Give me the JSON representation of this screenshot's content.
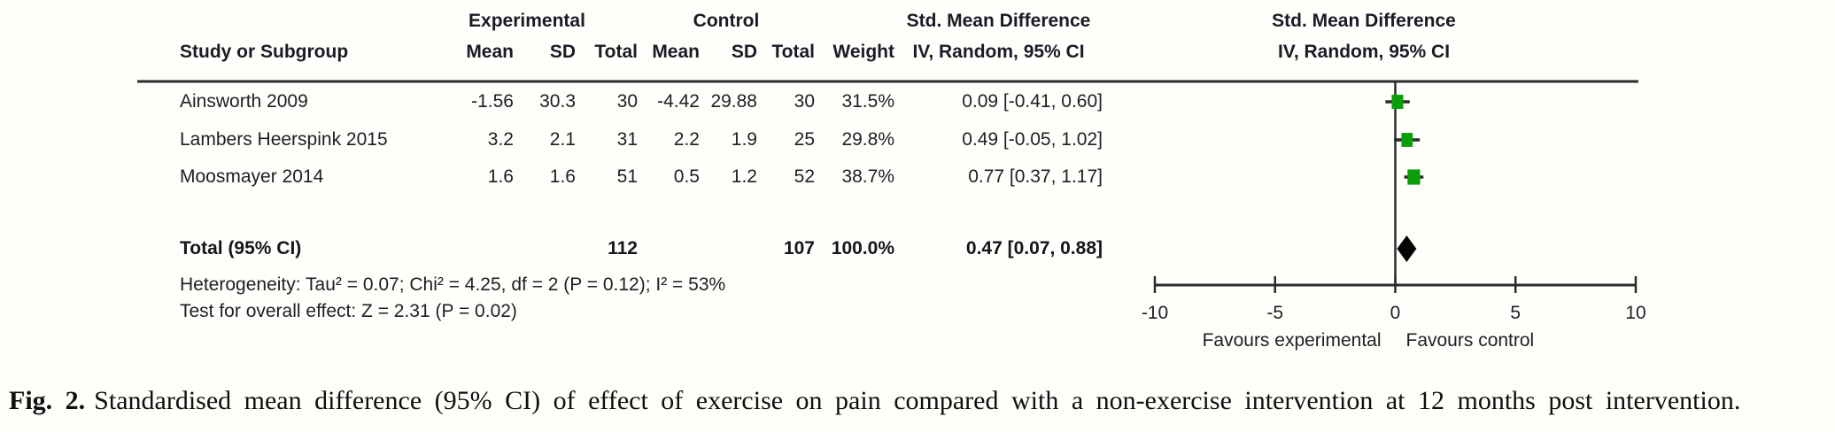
{
  "table": {
    "group_headers": {
      "experimental": "Experimental",
      "control": "Control",
      "smd": "Std. Mean Difference"
    },
    "col_headers": {
      "study": "Study or Subgroup",
      "mean_e": "Mean",
      "sd_e": "SD",
      "total_e": "Total",
      "mean_c": "Mean",
      "sd_c": "SD",
      "total_c": "Total",
      "weight": "Weight",
      "ci": "IV, Random, 95% CI"
    },
    "rows": [
      {
        "study": "Ainsworth 2009",
        "mean_e": "-1.56",
        "sd_e": "30.3",
        "total_e": "30",
        "mean_c": "-4.42",
        "sd_c": "29.88",
        "total_c": "30",
        "weight": "31.5%",
        "ci": "0.09 [-0.41, 0.60]"
      },
      {
        "study": "Lambers Heerspink 2015",
        "mean_e": "3.2",
        "sd_e": "2.1",
        "total_e": "31",
        "mean_c": "2.2",
        "sd_c": "1.9",
        "total_c": "25",
        "weight": "29.8%",
        "ci": "0.49 [-0.05, 1.02]"
      },
      {
        "study": "Moosmayer 2014",
        "mean_e": "1.6",
        "sd_e": "1.6",
        "total_e": "51",
        "mean_c": "0.5",
        "sd_c": "1.2",
        "total_c": "52",
        "weight": "38.7%",
        "ci": "0.77 [0.37, 1.17]"
      }
    ],
    "total_row": {
      "label": "Total (95% CI)",
      "total_e": "112",
      "total_c": "107",
      "weight": "100.0%",
      "ci": "0.47 [0.07, 0.88]"
    },
    "heterogeneity": "Heterogeneity: Tau² = 0.07; Chi² = 4.25, df = 2 (P = 0.12); I² = 53%",
    "overall_effect": "Test for overall effect: Z = 2.31 (P = 0.02)"
  },
  "plot_header": {
    "line1": "Std. Mean Difference",
    "line2": "IV, Random, 95% CI"
  },
  "chart_data": {
    "type": "scatter",
    "subtype": "forest-plot",
    "effect_measure": "Std. Mean Difference (IV, Random, 95% CI)",
    "xlim": [
      -10,
      10
    ],
    "xticks": [
      -10,
      -5,
      0,
      5,
      10
    ],
    "x_axis_labels": {
      "left": "Favours experimental",
      "right": "Favours control"
    },
    "grid": false,
    "studies": [
      {
        "name": "Ainsworth 2009",
        "smd": 0.09,
        "ci_low": -0.41,
        "ci_high": 0.6,
        "weight_pct": 31.5
      },
      {
        "name": "Lambers Heerspink 2015",
        "smd": 0.49,
        "ci_low": -0.05,
        "ci_high": 1.02,
        "weight_pct": 29.8
      },
      {
        "name": "Moosmayer 2014",
        "smd": 0.77,
        "ci_low": 0.37,
        "ci_high": 1.17,
        "weight_pct": 38.7
      }
    ],
    "total": {
      "smd": 0.47,
      "ci_low": 0.07,
      "ci_high": 0.88
    },
    "marker_color": "#0a9e0a",
    "diamond_color": "#050505",
    "line_color": "#2b2b2b"
  },
  "caption": {
    "label": "Fig. 2.",
    "text": "Standardised mean difference (95% CI) of effect of exercise on pain compared with a non-exercise intervention at 12 months post intervention."
  }
}
